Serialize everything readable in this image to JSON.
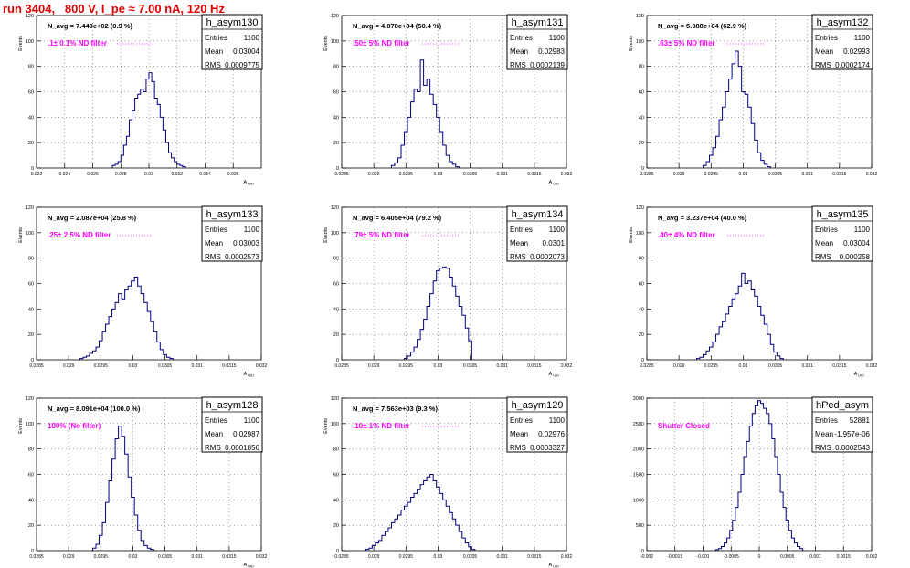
{
  "run_title": "run 3404,   800 V, I_pe ≈ 7.00 nA, 120 Hz",
  "colors": {
    "title": "#e00000",
    "histogram": "#00007f",
    "annotation": "#ff00ff",
    "frame": "#000000"
  },
  "stats_labels": {
    "entries": "Entries",
    "mean": "Mean",
    "rms": "RMS"
  },
  "chart_data": [
    {
      "type": "histogram",
      "name": "h_asym130",
      "ylabel": "Events",
      "xlabel": "A_UID",
      "ylim": [
        0,
        120
      ],
      "yticks": [
        "0",
        "20",
        "40",
        "60",
        "80",
        "100",
        "120"
      ],
      "xlim": [
        0.022,
        0.038
      ],
      "xticks": [
        "0.022",
        "0.024",
        "0.026",
        "0.028",
        "0.03",
        "0.032",
        "0.034",
        "0.036"
      ],
      "grid": true,
      "navg": "N_avg = 7.449e+02 (0.9 %)",
      "filter": ".1± 0.1% ND filter",
      "stats": {
        "entries": "1100",
        "mean": "0.03004",
        "rms": "0.0009775"
      },
      "x": [
        0.0275,
        0.0277,
        0.0279,
        0.0281,
        0.0283,
        0.0285,
        0.0287,
        0.0289,
        0.0291,
        0.0293,
        0.0295,
        0.0297,
        0.0299,
        0.0301,
        0.0303,
        0.0305,
        0.0307,
        0.0309,
        0.0311,
        0.0313,
        0.0315,
        0.0317,
        0.0319,
        0.0321,
        0.0323,
        0.0325
      ],
      "values": [
        2,
        3,
        5,
        10,
        18,
        25,
        38,
        45,
        55,
        58,
        62,
        60,
        70,
        75,
        68,
        55,
        50,
        40,
        30,
        20,
        12,
        8,
        5,
        3,
        2,
        1
      ]
    },
    {
      "type": "histogram",
      "name": "h_asym131",
      "ylabel": "Events",
      "xlabel": "A_UID",
      "ylim": [
        0,
        120
      ],
      "yticks": [
        "0",
        "20",
        "40",
        "60",
        "80",
        "100",
        "120"
      ],
      "xlim": [
        0.0285,
        0.032
      ],
      "xticks": [
        "0.0285",
        "0.029",
        "0.0295",
        "0.03",
        "0.0305",
        "0.031",
        "0.0315",
        "0.032"
      ],
      "grid": true,
      "navg": "N_avg = 4.078e+04 (50.4 %)",
      "filter": ".50± 5% ND filter",
      "stats": {
        "entries": "1100",
        "mean": "0.02983",
        "rms": "0.0002139"
      },
      "x": [
        0.0293,
        0.02935,
        0.0294,
        0.02945,
        0.0295,
        0.02955,
        0.0296,
        0.02965,
        0.0297,
        0.02975,
        0.0298,
        0.02985,
        0.0299,
        0.02995,
        0.03,
        0.03005,
        0.0301,
        0.03015,
        0.0302,
        0.03025,
        0.0303
      ],
      "values": [
        2,
        4,
        8,
        18,
        28,
        40,
        52,
        62,
        60,
        85,
        65,
        70,
        58,
        50,
        40,
        28,
        18,
        10,
        5,
        3,
        1
      ]
    },
    {
      "type": "histogram",
      "name": "h_asym132",
      "ylabel": "Events",
      "xlabel": "",
      "ylim": [
        0,
        120
      ],
      "yticks": [
        "0",
        "20",
        "40",
        "60",
        "80",
        "100",
        "120"
      ],
      "xlim": [
        0.0285,
        0.032
      ],
      "xticks": [
        "0.0285",
        "0.029",
        "0.0295",
        "0.03",
        "0.0305",
        "0.031",
        "0.0315",
        "0.032"
      ],
      "grid": true,
      "navg": "N_avg = 5.088e+04 (62.9 %)",
      "filter": ".63± 5% ND filter",
      "stats": {
        "entries": "1100",
        "mean": "0.02993",
        "rms": "0.0002174"
      },
      "x": [
        0.0294,
        0.02945,
        0.0295,
        0.02955,
        0.0296,
        0.02965,
        0.0297,
        0.02975,
        0.0298,
        0.02985,
        0.0299,
        0.02995,
        0.03,
        0.03005,
        0.0301,
        0.03015,
        0.0302,
        0.03025,
        0.0303,
        0.03035,
        0.0304
      ],
      "values": [
        2,
        5,
        10,
        16,
        25,
        38,
        48,
        60,
        70,
        82,
        92,
        80,
        60,
        58,
        48,
        35,
        22,
        12,
        6,
        3,
        1
      ]
    },
    {
      "type": "histogram",
      "name": "h_asym133",
      "ylabel": "Events",
      "xlabel": "A_UID",
      "ylim": [
        0,
        120
      ],
      "yticks": [
        "0",
        "20",
        "40",
        "60",
        "80",
        "100",
        "120"
      ],
      "xlim": [
        0.0285,
        0.032
      ],
      "xticks": [
        "0.0285",
        "0.029",
        "0.0295",
        "0.03",
        "0.0305",
        "0.031",
        "0.0315",
        "0.032"
      ],
      "grid": false,
      "navg": "N_avg = 2.087e+04 (25.8 %)",
      "filter": ".25± 2.5% ND filter",
      "stats": {
        "entries": "1100",
        "mean": "0.03003",
        "rms": "0.0002573"
      },
      "x": [
        0.0292,
        0.02925,
        0.0293,
        0.02935,
        0.0294,
        0.02945,
        0.0295,
        0.02955,
        0.0296,
        0.02965,
        0.0297,
        0.02975,
        0.0298,
        0.02985,
        0.0299,
        0.02995,
        0.03,
        0.03005,
        0.0301,
        0.03015,
        0.0302,
        0.03025,
        0.0303,
        0.03035,
        0.0304,
        0.03045,
        0.0305,
        0.03055,
        0.0306
      ],
      "values": [
        1,
        2,
        3,
        5,
        7,
        10,
        15,
        22,
        28,
        34,
        40,
        45,
        52,
        48,
        55,
        58,
        62,
        65,
        58,
        52,
        45,
        38,
        30,
        22,
        14,
        8,
        4,
        2,
        1
      ]
    },
    {
      "type": "histogram",
      "name": "h_asym134",
      "ylabel": "Events",
      "xlabel": "A_UID",
      "ylim": [
        0,
        120
      ],
      "yticks": [
        "0",
        "20",
        "40",
        "60",
        "80",
        "100",
        "120"
      ],
      "xlim": [
        0.0285,
        0.032
      ],
      "xticks": [
        "0.0285",
        "0.029",
        "0.0295",
        "0.03",
        "0.0305",
        "0.031",
        "0.0315",
        "0.032"
      ],
      "grid": true,
      "navg": "N_avg = 6.405e+04 (79.2 %)",
      "filter": ".79± 5% ND filter",
      "stats": {
        "entries": "1100",
        "mean": "0.0301",
        "rms": "0.0002073"
      },
      "x": [
        0.0295,
        0.02955,
        0.0296,
        0.02965,
        0.0297,
        0.02975,
        0.0298,
        0.02985,
        0.0299,
        0.02995,
        0.03,
        0.03005,
        0.0301,
        0.03015,
        0.0302,
        0.03025,
        0.0303,
        0.03035,
        0.0304,
        0.03045,
        0.0305
      ],
      "values": [
        1,
        3,
        6,
        10,
        16,
        24,
        32,
        42,
        52,
        62,
        70,
        72,
        73,
        72,
        65,
        58,
        50,
        42,
        35,
        25,
        15
      ]
    },
    {
      "type": "histogram",
      "name": "h_asym135",
      "ylabel": "Events",
      "xlabel": "A_UID",
      "ylim": [
        0,
        120
      ],
      "yticks": [
        "0",
        "20",
        "40",
        "60",
        "80",
        "100",
        "120"
      ],
      "xlim": [
        0.0285,
        0.032
      ],
      "xticks": [
        "0.0285",
        "0.029",
        "0.0295",
        "0.03",
        "0.0305",
        "0.031",
        "0.0315",
        "0.032"
      ],
      "grid": false,
      "navg": "N_avg = 3.237e+04 (40.0 %)",
      "filter": ".40± 4% ND filter",
      "stats": {
        "entries": "1100",
        "mean": "0.03004",
        "rms": "0.000258"
      },
      "x": [
        0.0293,
        0.02935,
        0.0294,
        0.02945,
        0.0295,
        0.02955,
        0.0296,
        0.02965,
        0.0297,
        0.02975,
        0.0298,
        0.02985,
        0.0299,
        0.02995,
        0.03,
        0.03005,
        0.0301,
        0.03015,
        0.0302,
        0.03025,
        0.0303,
        0.03035,
        0.0304,
        0.03045,
        0.0305,
        0.03055,
        0.0306
      ],
      "values": [
        1,
        2,
        4,
        7,
        10,
        14,
        20,
        26,
        30,
        36,
        42,
        48,
        52,
        58,
        68,
        60,
        62,
        55,
        50,
        42,
        35,
        28,
        20,
        12,
        6,
        3,
        1
      ]
    },
    {
      "type": "histogram",
      "name": "h_asym128",
      "ylabel": "Events",
      "xlabel": "A_UID",
      "ylim": [
        0,
        120
      ],
      "yticks": [
        "0",
        "20",
        "40",
        "60",
        "80",
        "100",
        "120"
      ],
      "xlim": [
        0.0285,
        0.032
      ],
      "xticks": [
        "0.0285",
        "0.029",
        "0.0295",
        "0.03",
        "0.0305",
        "0.031",
        "0.0315",
        "0.032"
      ],
      "grid": true,
      "navg": "N_avg = 8.091e+04 (100.0 %)",
      "filter": "100% (No filter)",
      "stats": {
        "entries": "1100",
        "mean": "0.02987",
        "rms": "0.0001856"
      },
      "x": [
        0.0294,
        0.02945,
        0.0295,
        0.02955,
        0.0296,
        0.02965,
        0.0297,
        0.02975,
        0.0298,
        0.02985,
        0.0299,
        0.02995,
        0.03,
        0.03005,
        0.0301,
        0.03015,
        0.0302,
        0.03025,
        0.0303
      ],
      "values": [
        2,
        5,
        12,
        22,
        38,
        55,
        72,
        88,
        98,
        90,
        76,
        58,
        42,
        28,
        16,
        8,
        4,
        2,
        1
      ]
    },
    {
      "type": "histogram",
      "name": "h_asym129",
      "ylabel": "Events",
      "xlabel": "A_UID",
      "ylim": [
        0,
        120
      ],
      "yticks": [
        "0",
        "20",
        "40",
        "60",
        "80",
        "100",
        "120"
      ],
      "xlim": [
        0.0285,
        0.032
      ],
      "xticks": [
        "0.0285",
        "0.029",
        "0.0295",
        "0.03",
        "0.0305",
        "0.031",
        "0.0315",
        "0.032"
      ],
      "grid": true,
      "navg": "N_avg = 7.563e+03 (9.3 %)",
      "filter": ".10± 1% ND filter",
      "stats": {
        "entries": "1100",
        "mean": "0.02976",
        "rms": "0.0003327"
      },
      "x": [
        0.0289,
        0.02895,
        0.029,
        0.02905,
        0.0291,
        0.02915,
        0.0292,
        0.02925,
        0.0293,
        0.02935,
        0.0294,
        0.02945,
        0.0295,
        0.02955,
        0.0296,
        0.02965,
        0.0297,
        0.02975,
        0.0298,
        0.02985,
        0.0299,
        0.02995,
        0.03,
        0.03005,
        0.0301,
        0.03015,
        0.0302,
        0.03025,
        0.0303,
        0.03035,
        0.0304,
        0.03045,
        0.0305,
        0.03055
      ],
      "values": [
        1,
        2,
        4,
        6,
        8,
        12,
        15,
        18,
        22,
        25,
        28,
        32,
        35,
        38,
        42,
        45,
        48,
        52,
        55,
        58,
        60,
        55,
        50,
        45,
        40,
        35,
        30,
        25,
        20,
        15,
        10,
        6,
        3,
        1
      ]
    },
    {
      "type": "histogram",
      "name": "hPed_asym",
      "ylabel": "",
      "xlabel": "",
      "ylim": [
        0,
        3000
      ],
      "yticks": [
        "0",
        "500",
        "1000",
        "1500",
        "2000",
        "2500",
        "3000"
      ],
      "xlim": [
        -0.002,
        0.002
      ],
      "xticks": [
        "-0.002",
        "-0.0015",
        "-0.001",
        "-0.0005",
        "0",
        "0.0005",
        "0.001",
        "0.0015",
        "0.002"
      ],
      "grid": true,
      "navg": "",
      "filter": "Shutter Closed",
      "stats": {
        "entries": "52881",
        "mean": "-1.957e-06",
        "rms": "0.0002543"
      },
      "x": [
        -0.00075,
        -0.0007,
        -0.00065,
        -0.0006,
        -0.00055,
        -0.0005,
        -0.00045,
        -0.0004,
        -0.00035,
        -0.0003,
        -0.00025,
        -0.0002,
        -0.00015,
        -0.0001,
        -5e-05,
        0,
        5e-05,
        0.0001,
        0.00015,
        0.0002,
        0.00025,
        0.0003,
        0.00035,
        0.0004,
        0.00045,
        0.0005,
        0.00055,
        0.0006,
        0.00065,
        0.0007,
        0.00075
      ],
      "values": [
        20,
        40,
        80,
        150,
        250,
        400,
        600,
        850,
        1150,
        1500,
        1850,
        2150,
        2450,
        2700,
        2850,
        2950,
        2900,
        2800,
        2700,
        2500,
        2200,
        1850,
        1500,
        1150,
        850,
        600,
        400,
        250,
        150,
        80,
        40
      ]
    }
  ]
}
